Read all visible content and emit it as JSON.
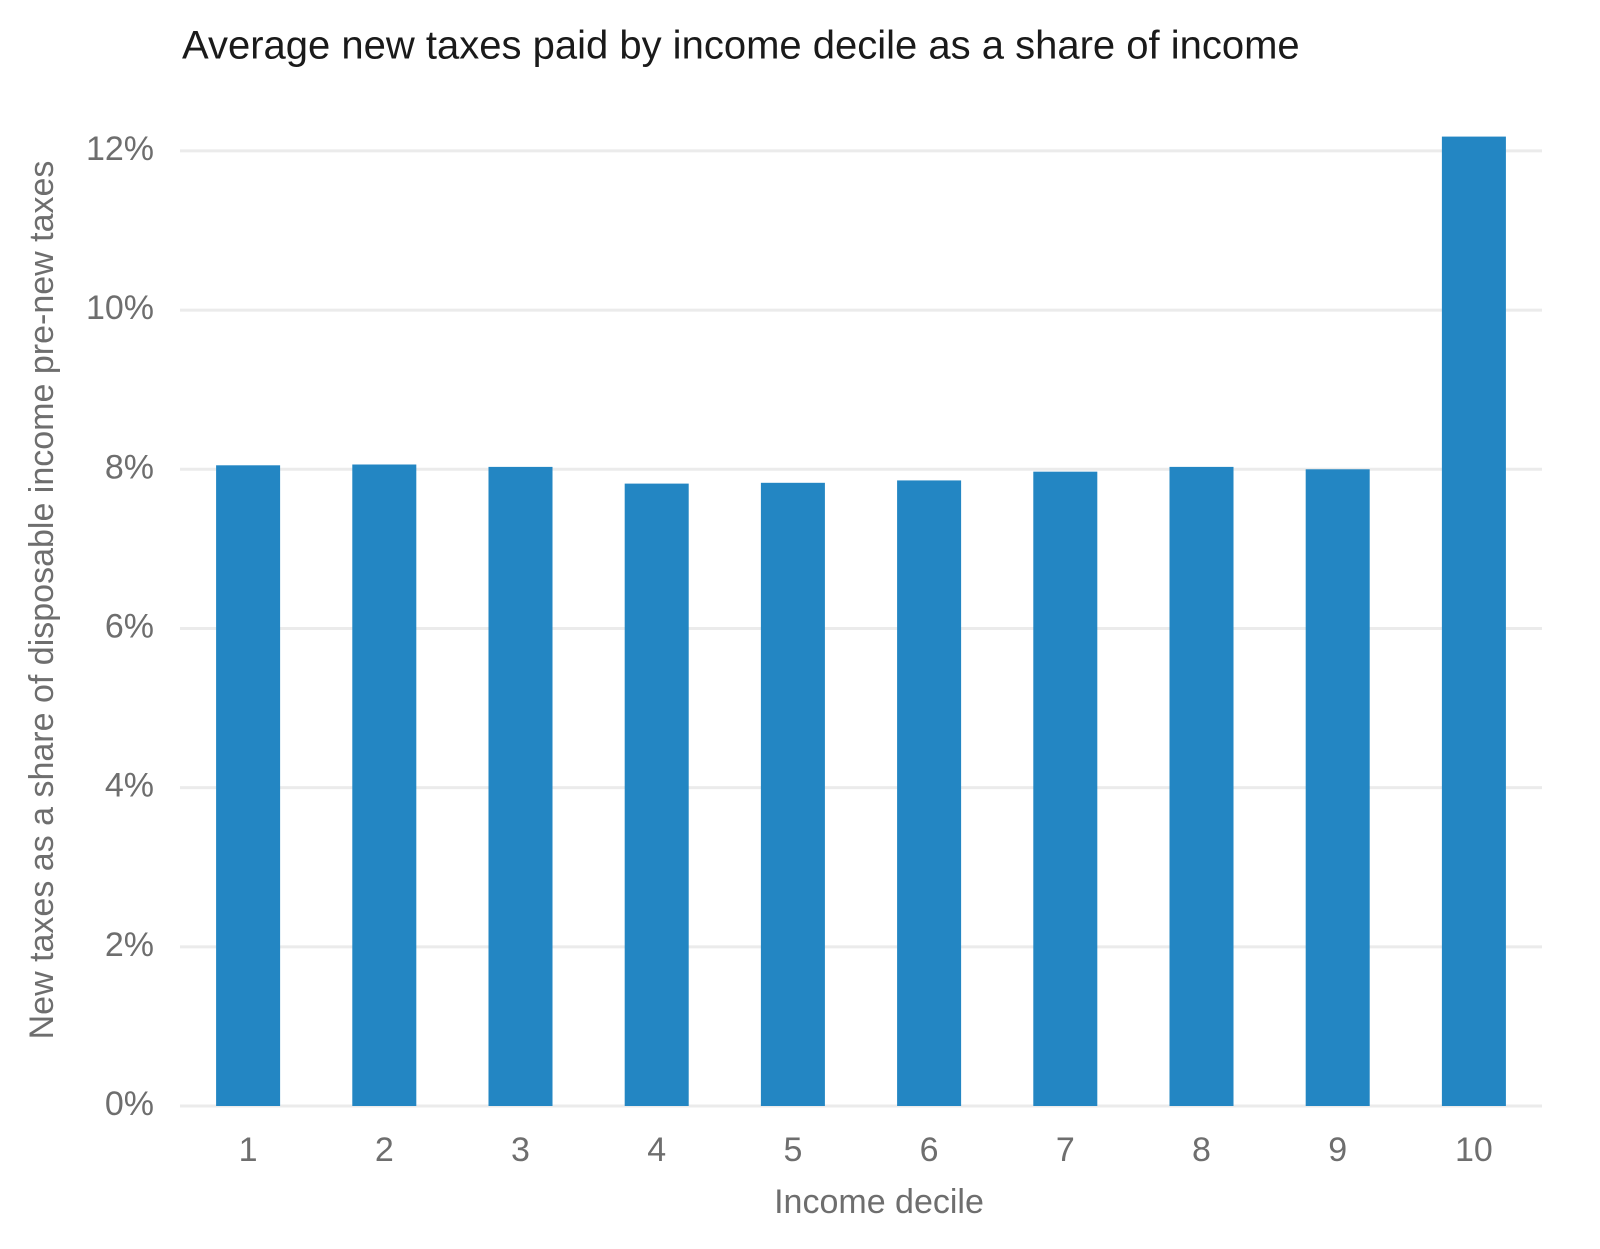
{
  "chart_data": {
    "type": "bar",
    "title": "Average new taxes paid by income decile as a share of income",
    "x_label": "Income decile",
    "y_label": "New taxes as a share of disposable income pre-new taxes",
    "categories": [
      "1",
      "2",
      "3",
      "4",
      "5",
      "6",
      "7",
      "8",
      "9",
      "10"
    ],
    "values": [
      8.05,
      8.06,
      8.03,
      7.82,
      7.83,
      7.86,
      7.97,
      8.03,
      8.0,
      12.18
    ],
    "color": "#2386c3",
    "ylim": [
      0,
      12.2
    ],
    "yticks": [
      {
        "value": 0,
        "label": "0%"
      },
      {
        "value": 2,
        "label": "2%"
      },
      {
        "value": 4,
        "label": "4%"
      },
      {
        "value": 6,
        "label": "6%"
      },
      {
        "value": 8,
        "label": "8%"
      },
      {
        "value": 10,
        "label": "10%"
      },
      {
        "value": 12,
        "label": "12%"
      }
    ],
    "grid": true
  }
}
